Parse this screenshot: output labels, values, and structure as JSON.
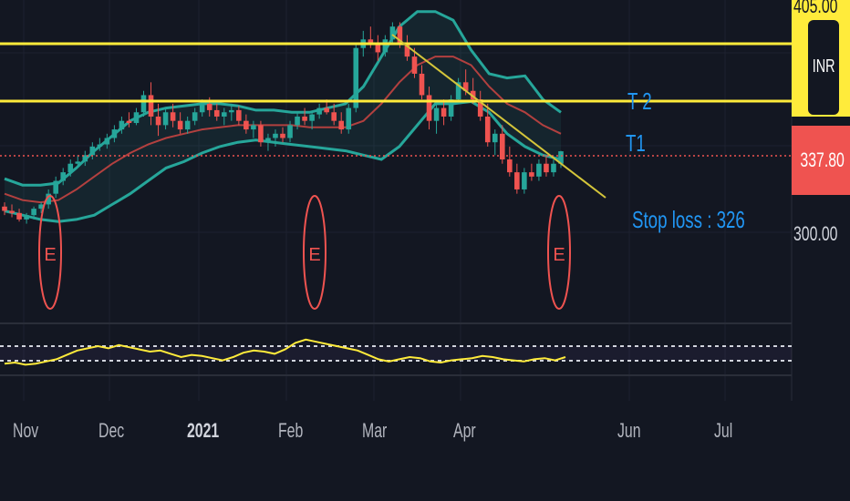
{
  "chart_data": {
    "type": "candlestick",
    "currency": "INR",
    "x_ticks": [
      "Nov",
      "Dec",
      "2021",
      "Feb",
      "Mar",
      "Apr",
      "Jun",
      "Jul"
    ],
    "y_ticks": [
      {
        "label": "405.00",
        "value": 405
      },
      {
        "label": "300.00",
        "value": 300
      }
    ],
    "last_price": {
      "label": "337.80",
      "value": 337.8
    },
    "horizontal_levels": [
      {
        "label": "T 2",
        "value": 368
      },
      {
        "label": "T1",
        "value": 390
      }
    ],
    "stop_loss_label": "Stop loss : 326",
    "earnings_markers": [
      "E",
      "E",
      "E"
    ],
    "trendline": {
      "from": {
        "x": "Mar",
        "y": 392
      },
      "to": {
        "x": "Apr end",
        "y": 322
      }
    },
    "ohlc": [
      [
        312,
        314,
        308,
        310
      ],
      [
        310,
        313,
        307,
        309
      ],
      [
        309,
        311,
        305,
        306
      ],
      [
        306,
        309,
        304,
        308
      ],
      [
        308,
        312,
        306,
        311
      ],
      [
        311,
        314,
        309,
        313
      ],
      [
        313,
        320,
        311,
        318
      ],
      [
        318,
        326,
        316,
        324
      ],
      [
        324,
        330,
        322,
        328
      ],
      [
        328,
        334,
        326,
        332
      ],
      [
        332,
        336,
        330,
        333
      ],
      [
        333,
        338,
        331,
        336
      ],
      [
        336,
        342,
        334,
        340
      ],
      [
        340,
        344,
        338,
        341
      ],
      [
        341,
        346,
        339,
        344
      ],
      [
        344,
        350,
        342,
        348
      ],
      [
        348,
        354,
        346,
        352
      ],
      [
        352,
        356,
        349,
        351
      ],
      [
        351,
        358,
        350,
        356
      ],
      [
        356,
        366,
        354,
        364
      ],
      [
        364,
        370,
        350,
        354
      ],
      [
        354,
        360,
        345,
        350
      ],
      [
        350,
        358,
        348,
        356
      ],
      [
        356,
        360,
        349,
        352
      ],
      [
        352,
        356,
        346,
        348
      ],
      [
        348,
        354,
        346,
        352
      ],
      [
        352,
        358,
        350,
        356
      ],
      [
        356,
        362,
        354,
        360
      ],
      [
        360,
        363,
        354,
        357
      ],
      [
        357,
        360,
        352,
        354
      ],
      [
        354,
        358,
        350,
        356
      ],
      [
        356,
        360,
        352,
        357
      ],
      [
        357,
        359,
        350,
        352
      ],
      [
        352,
        355,
        346,
        348
      ],
      [
        348,
        352,
        344,
        350
      ],
      [
        350,
        352,
        340,
        342
      ],
      [
        342,
        346,
        338,
        344
      ],
      [
        344,
        348,
        340,
        346
      ],
      [
        346,
        349,
        342,
        344
      ],
      [
        344,
        352,
        342,
        350
      ],
      [
        350,
        356,
        348,
        354
      ],
      [
        354,
        358,
        350,
        352
      ],
      [
        352,
        356,
        348,
        355
      ],
      [
        355,
        360,
        353,
        358
      ],
      [
        358,
        362,
        355,
        356
      ],
      [
        356,
        360,
        350,
        352
      ],
      [
        352,
        356,
        346,
        348
      ],
      [
        348,
        360,
        346,
        358
      ],
      [
        358,
        388,
        356,
        386
      ],
      [
        386,
        394,
        382,
        390
      ],
      [
        390,
        396,
        386,
        388
      ],
      [
        388,
        392,
        380,
        384
      ],
      [
        384,
        392,
        382,
        390
      ],
      [
        390,
        398,
        388,
        396
      ],
      [
        396,
        398,
        386,
        388
      ],
      [
        388,
        392,
        380,
        382
      ],
      [
        382,
        386,
        372,
        374
      ],
      [
        374,
        378,
        362,
        364
      ],
      [
        364,
        368,
        348,
        352
      ],
      [
        352,
        360,
        346,
        358
      ],
      [
        358,
        362,
        350,
        354
      ],
      [
        354,
        364,
        352,
        362
      ],
      [
        362,
        372,
        360,
        370
      ],
      [
        370,
        376,
        364,
        366
      ],
      [
        366,
        372,
        360,
        362
      ],
      [
        362,
        366,
        352,
        354
      ],
      [
        354,
        360,
        340,
        342
      ],
      [
        342,
        348,
        336,
        346
      ],
      [
        346,
        350,
        332,
        334
      ],
      [
        334,
        340,
        326,
        328
      ],
      [
        328,
        332,
        318,
        320
      ],
      [
        320,
        330,
        318,
        328
      ],
      [
        328,
        332,
        324,
        326
      ],
      [
        326,
        334,
        324,
        332
      ],
      [
        332,
        336,
        326,
        328
      ],
      [
        328,
        334,
        326,
        332
      ],
      [
        332,
        338,
        330,
        337.8
      ]
    ],
    "bollinger": {
      "upper": [
        325,
        322,
        322,
        323,
        330,
        338,
        345,
        352,
        356,
        358,
        359,
        360,
        360,
        359,
        357,
        357,
        356,
        356,
        358,
        360,
        368,
        382,
        396,
        403,
        403,
        399,
        385,
        374,
        372,
        373,
        362,
        356
      ],
      "middle": [
        318,
        315,
        314,
        315,
        320,
        326,
        332,
        337,
        341,
        344,
        346,
        348,
        349,
        350,
        350,
        350,
        350,
        349,
        349,
        349,
        352,
        360,
        370,
        378,
        382,
        382,
        378,
        368,
        360,
        356,
        350,
        346
      ],
      "lower": [
        310,
        308,
        306,
        305,
        306,
        308,
        313,
        318,
        324,
        330,
        333,
        337,
        340,
        342,
        343,
        342,
        341,
        340,
        339,
        338,
        336,
        334,
        340,
        350,
        360,
        360,
        361,
        356,
        346,
        340,
        336,
        334
      ]
    },
    "rsi_series": [
      44,
      45,
      43,
      44,
      46,
      48,
      52,
      56,
      58,
      60,
      58,
      61,
      59,
      57,
      55,
      56,
      53,
      50,
      52,
      51,
      49,
      47,
      50,
      54,
      56,
      55,
      53,
      57,
      63,
      66,
      64,
      62,
      60,
      58,
      56,
      52,
      48,
      46,
      48,
      50,
      49,
      46,
      45,
      47,
      48,
      49,
      51,
      50,
      48,
      47,
      46,
      48,
      49,
      47,
      50
    ]
  }
}
